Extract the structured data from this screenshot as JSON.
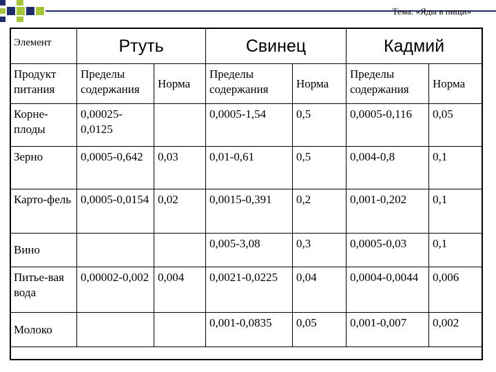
{
  "topic": "Тема: «Яды в пищи»",
  "header": {
    "element": "Элемент",
    "metals": [
      "Ртуть",
      "Свинец",
      "Кадмий"
    ],
    "product": "Продукт питания",
    "range": "Пределы содержания",
    "norm": "Норма"
  },
  "rows": [
    {
      "product": "Корне-плоды",
      "hg_range": "0,00025-0,0125",
      "hg_norm": "",
      "pb_range": "0,0005-1,54",
      "pb_norm": "0,5",
      "cd_range": "0,0005-0,116",
      "cd_norm": "0,05"
    },
    {
      "product": "Зерно",
      "hg_range": "0,0005-0,642",
      "hg_norm": "0,03",
      "pb_range": "0,01-0,61",
      "pb_norm": "0,5",
      "cd_range": "0,004-0,8",
      "cd_norm": "0,1"
    },
    {
      "product": "Карто-фель",
      "hg_range": "0,0005-0,0154",
      "hg_norm": "0,02",
      "pb_range": "0,0015-0,391",
      "pb_norm": "0,2",
      "cd_range": "0,001-0,202",
      "cd_norm": "0,1"
    },
    {
      "product": "Вино",
      "hg_range": "",
      "hg_norm": "",
      "pb_range": "0,005-3,08",
      "pb_norm": "0,3",
      "cd_range": "0,0005-0,03",
      "cd_norm": "0,1"
    },
    {
      "product": "Питье-вая вода",
      "hg_range": "0,00002-0,002",
      "hg_norm": "0,004",
      "pb_range": "0,0021-0,0225",
      "pb_norm": "0,04",
      "cd_range": "0,0004-0,0044",
      "cd_norm": "0,006"
    },
    {
      "product": "Молоко",
      "hg_range": "",
      "hg_norm": "",
      "pb_range": "0,001-0,0835",
      "pb_norm": "0,05",
      "cd_range": "0,001-0,007",
      "cd_norm": "0,002"
    }
  ],
  "colors": {
    "navy": "#1f2d6b",
    "lime": "#a5c63b",
    "grid": "#000000"
  }
}
